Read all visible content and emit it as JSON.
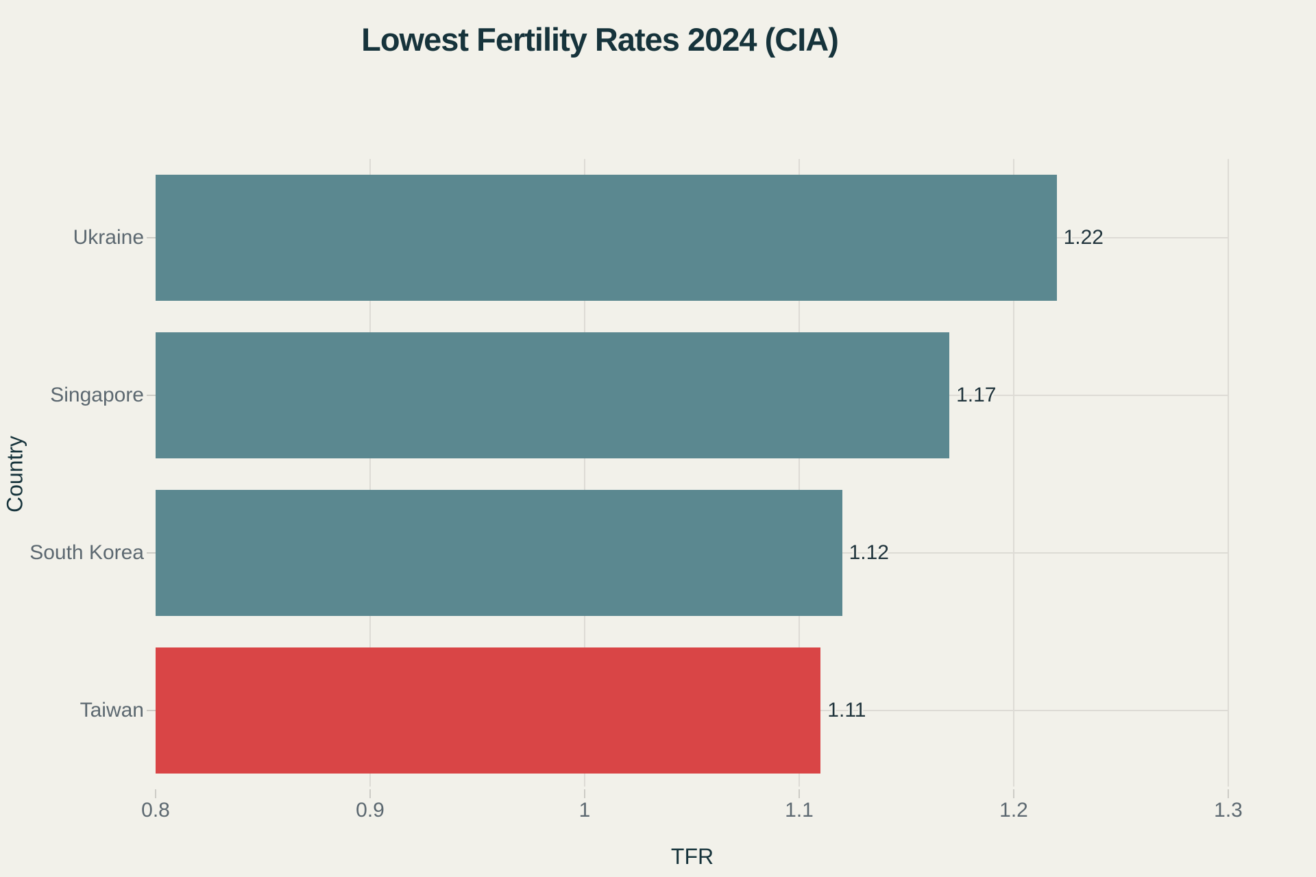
{
  "chart": {
    "title": "Lowest Fertility Rates 2024 (CIA)",
    "xlabel": "TFR",
    "ylabel": "Country"
  },
  "chart_data": {
    "type": "bar",
    "orientation": "horizontal",
    "title": "Lowest Fertility Rates 2024 (CIA)",
    "xlabel": "TFR",
    "ylabel": "Country",
    "categories": [
      "Ukraine",
      "Singapore",
      "South Korea",
      "Taiwan"
    ],
    "values": [
      1.22,
      1.17,
      1.12,
      1.11
    ],
    "value_labels": [
      "1.22",
      "1.17",
      "1.12",
      "1.11"
    ],
    "bar_colors": [
      "#5b8890",
      "#5b8890",
      "#5b8890",
      "#d94546"
    ],
    "xlim": [
      0.8,
      1.3
    ],
    "xticks": [
      0.8,
      0.9,
      1,
      1.1,
      1.2,
      1.3
    ],
    "xtick_labels": [
      "0.8",
      "0.9",
      "1",
      "1.1",
      "1.2",
      "1.3"
    ],
    "grid": true,
    "legend": "none",
    "colors": {
      "background": "#f2f1ea",
      "bar_default": "#5b8890",
      "bar_highlight": "#d94546",
      "gridline": "#dddbd5",
      "tick_mark": "#cdccc6",
      "title_text": "#16333b",
      "tick_text": "#5c6870",
      "value_text": "#20343c"
    }
  }
}
